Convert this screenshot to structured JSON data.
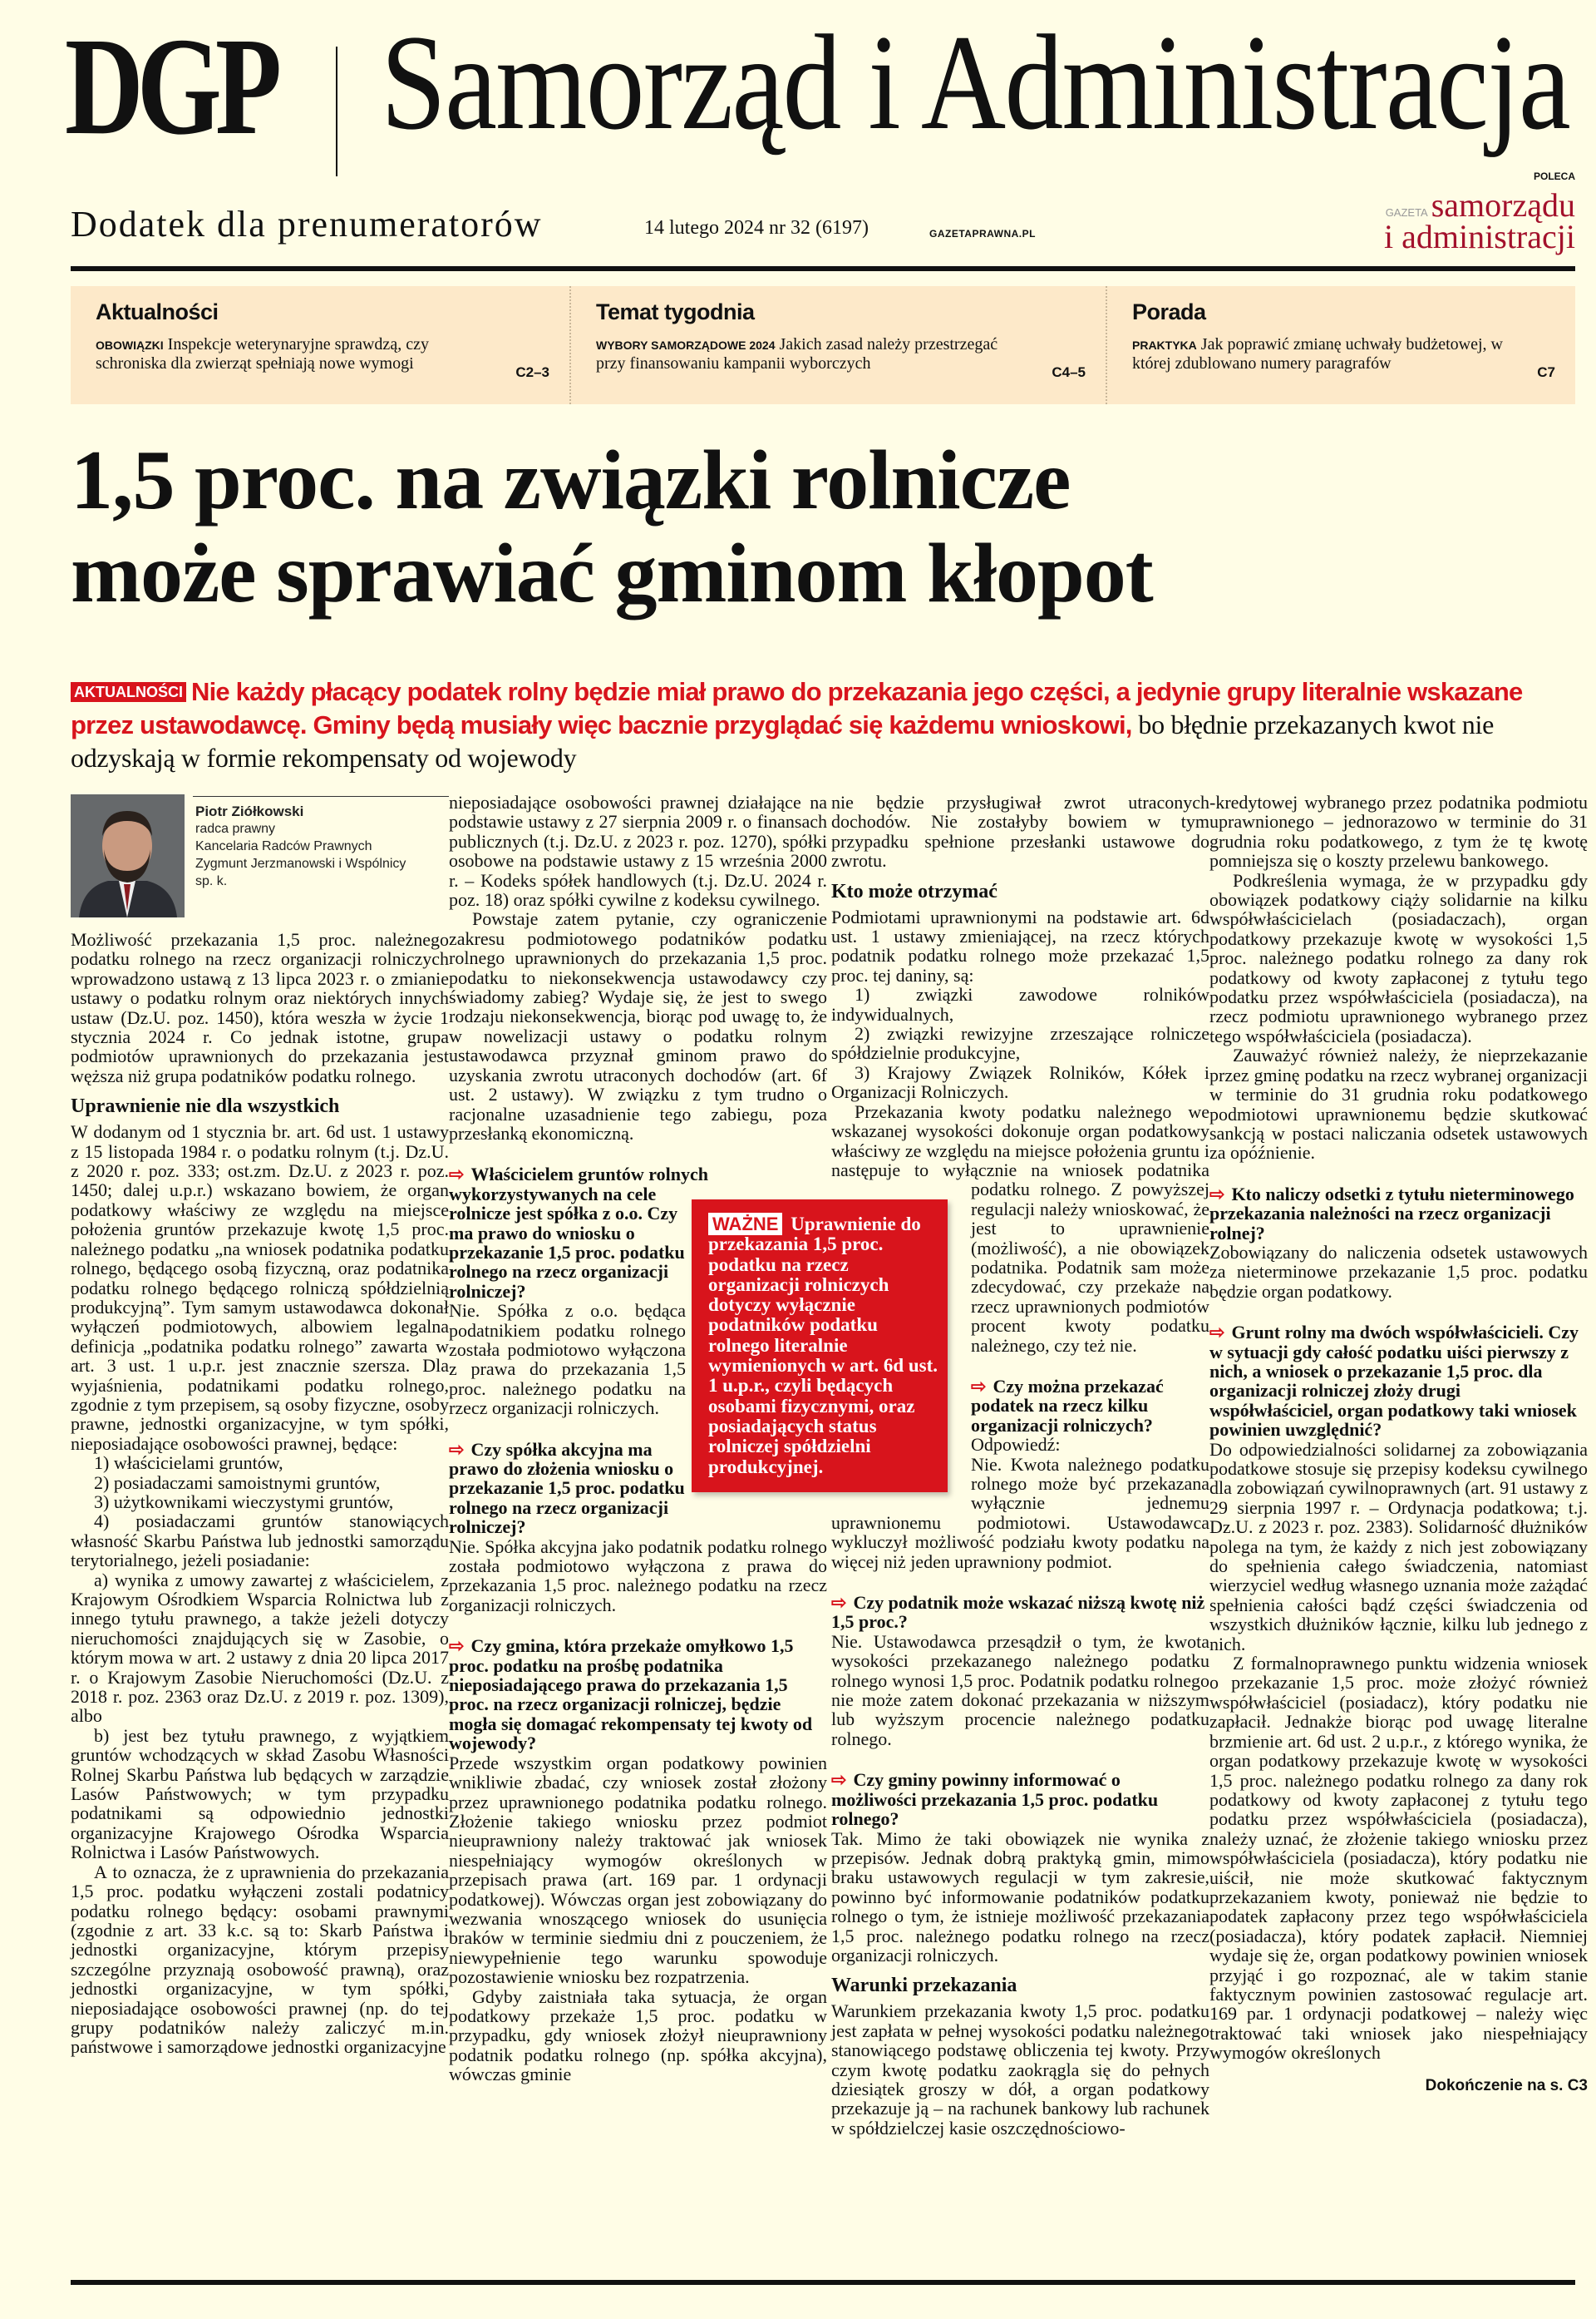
{
  "header": {
    "brand": "DGP",
    "masthead": "Samorząd i Administracja",
    "supplement": "Dodatek dla prenumeratorów",
    "issue": "14 lutego 2024 nr 32 (6197)",
    "site": "GAZETAPRAWNA.PL",
    "recommends": "POLECA",
    "partner": {
      "prefix": "GAZETA",
      "line1": "samorządu",
      "line2": "i administracji",
      "color": "#a3122c"
    }
  },
  "nav": [
    {
      "heading": "Aktualności",
      "label": "OBOWIĄZKI",
      "text": "Inspekcje weterynaryjne sprawdzą, czy schroniska dla zwierząt spełniają nowe wymogi",
      "page": "C2–3"
    },
    {
      "heading": "Temat tygodnia",
      "label": "WYBORY SAMORZĄDOWE 2024",
      "text": "Jakich zasad należy przestrzegać przy finansowaniu kampanii wyborczych",
      "page": "C4–5"
    },
    {
      "heading": "Porada",
      "label": "PRAKTYKA",
      "text": "Jak poprawić zmianę uchwały budżetowej, w której zdublowano numery paragrafów",
      "page": "C7"
    }
  ],
  "article": {
    "title_line1": "1,5 proc. na związki rolnicze",
    "title_line2": "może sprawiać gminom kłopot",
    "section_tag": "AKTUALNOŚCI",
    "lead_highlight": "Nie każdy płacący podatek rolny będzie miał prawo do przekazania jego części, a jedynie grupy literalnie wskazane przez ustawodawcę. Gminy będą musiały więc bacznie przyglądać się każdemu wnioskowi,",
    "lead_rest": "bo błędnie przekazanych kwot nie odzyskają w formie rekompensaty od wojewody",
    "author": {
      "name": "Piotr Ziółkowski",
      "role": "radca prawny",
      "firm1": "Kancelaria Radców Prawnych",
      "firm2": "Zygmunt Jerzmanowski i Wspólnicy",
      "firm3": "sp. k."
    },
    "important": {
      "label": "WAŻNE",
      "text": "Uprawnienie do przekazania 1,5 proc. podatku na rzecz organizacji rolniczych dotyczy wyłącznie podatników podatku rolnego literalnie wymienionych w art. 6d ust. 1 u.p.r., czyli będących osobami fizycznymi, oraz posiadających status rolniczej spółdzielni produkcyjnej."
    },
    "continued": "Dokończenie na s. C3",
    "accent_color": "#d8141c",
    "columns": [
      [
        {
          "t": "p",
          "text": "Możliwość przekazania 1,5 proc. należnego podatku rolnego na rzecz organizacji rolniczych wprowadzono ustawą z 13 lipca 2023 r. o zmianie ustawy o podatku rolnym oraz niektórych innych ustaw (Dz.U. poz. 1450), która weszła w życie 1 stycznia 2024 r. Co jednak istotne, grupa podmiotów uprawnionych do przekazania jest węższa niż grupa podatników podatku rolnego."
        },
        {
          "t": "h",
          "text": "Uprawnienie nie dla wszystkich"
        },
        {
          "t": "p",
          "text": "W dodanym od 1 stycznia br. art. 6d ust. 1 ustawy z 15 listopada 1984 r. o podatku rolnym (t.j. Dz.U. z 2020 r. poz. 333; ost.zm. Dz.U. z 2023 r. poz. 1450; dalej u.p.r.) wskazano bowiem, że organ podatkowy właściwy ze względu na miejsce położenia gruntów przekazuje kwotę 1,5 proc. należnego podatku „na wniosek podatnika podatku rolnego, będącego osobą fizyczną, oraz podatnika podatku rolnego będącego rolniczą spółdzielnią produkcyjną”. Tym samym ustawodawca dokonał wyłączeń podmiotowych, albowiem legalna definicja „podatnika podatku rolnego” zawarta w art. 3 ust. 1 u.p.r. jest znacznie szersza. Dla wyjaśnienia, podatnikami podatku rolnego, zgodnie z tym przepisem, są osoby fizyczne, osoby prawne, jednostki organizacyjne, w tym spółki, nieposiadające osobowości prawnej, będące:"
        },
        {
          "t": "li",
          "text": "1) właścicielami gruntów,"
        },
        {
          "t": "li",
          "text": "2) posiadaczami samoistnymi gruntów,"
        },
        {
          "t": "li",
          "text": "3) użytkownikami wieczystymi gruntów,"
        },
        {
          "t": "li",
          "text": "4) posiadaczami gruntów stanowiących własność Skarbu Państwa lub jednostki samorządu terytorialnego, jeżeli posiadanie:"
        },
        {
          "t": "li",
          "text": "a) wynika z umowy zawartej z właścicielem, z Krajowym Ośrodkiem Wsparcia Rolnictwa lub z innego tytułu prawnego, a także jeżeli dotyczy nieruchomości znajdujących się w Zasobie, o którym mowa w art. 2 ustawy z dnia 20 lipca 2017 r. o Krajowym Zasobie Nieruchomości (Dz.U. z 2018 r. poz. 2363 oraz Dz.U. z 2019 r. poz. 1309), albo"
        },
        {
          "t": "li",
          "text": "b) jest bez tytułu prawnego, z wyjątkiem gruntów wchodzących w skład Zasobu Własności Rolnej Skarbu Państwa lub będących w zarządzie Lasów Państwowych; w tym przypadku podatnikami są odpowiednio jednostki organizacyjne Krajowego Ośrodka Wsparcia Rolnictwa i Lasów Państwowych."
        },
        {
          "t": "pi",
          "text": "A to oznacza, że z uprawnienia do przekazania 1,5 proc. podatku wyłączeni zostali podatnicy podatku rolnego będący: osobami prawnymi (zgodnie z art. 33 k.c. są to: Skarb Państwa i jednostki organizacyjne, którym przepisy szczególne przyznają osobowość prawną), oraz jednostki organizacyjne, w tym spółki, nieposiadające osobowości prawnej (np. do tej grupy podatników należy zaliczyć m.in. państwowe i samorządowe jednostki organizacyjne"
        }
      ],
      [
        {
          "t": "p",
          "text": "nieposiadające osobowości prawnej działające na podstawie ustawy z 27 sierpnia 2009 r. o finansach publicznych (t.j. Dz.U. z 2023 r. poz. 1270), spółki osobowe na podstawie ustawy z 15 września 2000 r. – Kodeks spółek handlowych (t.j. Dz.U. 2024 r. poz. 18) oraz spółki cywilne z kodeksu cywilnego."
        },
        {
          "t": "pi",
          "text": "Powstaje zatem pytanie, czy ograniczenie zakresu podmiotowego podatników podatku rolnego uprawnionych do przekazania 1,5 proc. podatku to niekonsekwencja ustawodawcy czy świadomy zabieg? Wydaje się, że jest to swego rodzaju niekonsekwencja, biorąc pod uwagę to, że w nowelizacji ustawy o podatku rolnym ustawodawca przyznał gminom prawo do uzyskania zwrotu utraconych dochodów (art. 6f ust. 2 ustawy). W związku z tym trudno o racjonalne uzasadnienie tego zabiegu, poza przesłanką ekonomiczną."
        },
        {
          "t": "q",
          "text": "Właścicielem gruntów rolnych wykorzystywanych na cele rolnicze jest spółka z o.o. Czy ma prawo do wniosku o przekazanie 1,5 proc. podatku rolnego na rzecz organizacji rolniczej?"
        },
        {
          "t": "p",
          "text": "Nie. Spółka z o.o. będąca podatnikiem podatku rolnego została podmiotowo wyłączona z prawa do przekazania 1,5 proc. należnego podatku na rzecz organizacji rolniczych."
        },
        {
          "t": "q",
          "text": "Czy spółka akcyjna ma prawo do złożenia wniosku o przekazanie 1,5 proc. podatku rolnego na rzecz organizacji rolniczej?"
        },
        {
          "t": "p",
          "text": "Nie. Spółka akcyjna jako podatnik podatku rolnego została podmiotowo wyłączona z prawa do przekazania 1,5 proc. należnego podatku na rzecz organizacji rolniczych."
        },
        {
          "t": "q",
          "text": "Czy gmina, która przekaże omyłkowo 1,5 proc. podatku na prośbę podatnika nieposiadającego prawa do przekazania 1,5 proc. na rzecz organizacji rolniczej, będzie mogła się domagać rekompensaty tej kwoty od wojewody?"
        },
        {
          "t": "p",
          "text": "Przede wszystkim organ podatkowy powinien wnikliwie zbadać, czy wniosek został złożony przez uprawnionego podatnika podatku rolnego. Złożenie takiego wniosku przez podmiot nieuprawniony należy traktować jak wniosek niespełniający wymogów określonych w przepisach prawa (art. 169 par. 1 ordynacji podatkowej). Wówczas organ jest zobowiązany do wezwania wnoszącego wniosek do usunięcia braków w terminie siedmiu dni z pouczeniem, że niewypełnienie tego warunku spowoduje pozostawienie wniosku bez rozpatrzenia."
        },
        {
          "t": "pi",
          "text": "Gdyby zaistniała taka sytuacja, że organ podatkowy przekaże 1,5 proc. podatku w przypadku, gdy wniosek złożył nieuprawniony podatnik podatku rolnego (np. spółka akcyjna), wówczas gminie"
        }
      ],
      [
        {
          "t": "p",
          "text": "nie będzie przysługiwał zwrot utraconych dochodów. Nie zostałyby bowiem w tym przypadku spełnione przesłanki ustawowe do zwrotu."
        },
        {
          "t": "h",
          "text": "Kto może otrzymać"
        },
        {
          "t": "p",
          "text": "Podmiotami uprawnionymi na podstawie art. 6d ust. 1 ustawy zmieniającej, na rzecz których podatnik podatku rolnego może przekazać 1,5 proc. tej daniny, są:"
        },
        {
          "t": "li",
          "text": "1) związki zawodowe rolników indywidualnych,"
        },
        {
          "t": "li",
          "text": "2) związki rewizyjne zrzeszające rolnicze spółdzielnie produkcyjne,"
        },
        {
          "t": "li",
          "text": "3) Krajowy Związek Rolników, Kółek i Organizacji Rolniczych."
        },
        {
          "t": "pi",
          "text": "Przekazania kwoty podatku należnego we wskazanej wysokości dokonuje organ podatkowy właściwy ze względu na miejsce położenia gruntu i następuje to wyłącznie na wniosek podatnika podatku rolnego. Z powyższej regulacji należy wnioskować, że jest to uprawnienie (możliwość), a nie obowiązek podatnika. Podatnik sam może zdecydować, czy przekaże na rzecz uprawnionych podmiotów procent kwoty podatku należnego, czy też nie."
        },
        {
          "t": "q",
          "text": "Czy można przekazać podatek na rzecz kilku organizacji rolniczych?"
        },
        {
          "t": "p",
          "text": "Odpowiedź:"
        },
        {
          "t": "p",
          "text": "Nie. Kwota należnego podatku rolnego może być przekazana wyłącznie jednemu uprawnionemu podmiotowi. Ustawodawca wykluczył możliwość podziału kwoty podatku na więcej niż jeden uprawniony podmiot."
        },
        {
          "t": "q",
          "text": "Czy podatnik może wskazać niższą kwotę niż 1,5 proc.?"
        },
        {
          "t": "p",
          "text": "Nie. Ustawodawca przesądził o tym, że kwota wysokości przekazanego należnego podatku rolnego wynosi 1,5 proc. Podatnik podatku rolnego nie może zatem dokonać przekazania w niższym lub wyższym procencie należnego podatku rolnego."
        },
        {
          "t": "q",
          "text": "Czy gminy powinny informować o możliwości przekazania 1,5 proc. podatku rolnego?"
        },
        {
          "t": "p",
          "text": "Tak. Mimo że taki obowiązek nie wynika z przepisów. Jednak dobrą praktyką gmin, mimo braku ustawowych regulacji w tym zakresie, powinno być informowanie podatników podatku rolnego o tym, że istnieje możliwość przekazania 1,5 proc. należnego podatku rolnego na rzecz organizacji rolniczych."
        },
        {
          "t": "h",
          "text": "Warunki przekazania"
        },
        {
          "t": "p",
          "text": "Warunkiem przekazania kwoty 1,5 proc. podatku jest zapłata w pełnej wysokości podatku należnego stanowiącego podstawę obliczenia tej kwoty. Przy czym kwotę podatku zaokrągla się do pełnych dziesiątek groszy w dół, a organ podatkowy przekazuje ją – na rachunek bankowy lub rachunek w spółdzielczej kasie oszczędnościowo-"
        }
      ],
      [
        {
          "t": "p",
          "text": "-kredytowej wybranego przez podatnika podmiotu uprawnionego – jednorazowo w terminie do 31 grudnia roku podatkowego, z tym że tę kwotę pomniejsza się o koszty przelewu bankowego."
        },
        {
          "t": "pi",
          "text": "Podkreślenia wymaga, że w przypadku gdy obowiązek podatkowy ciąży solidarnie na kilku współwłaścicielach (posiadaczach), organ podatkowy przekazuje kwotę w wysokości 1,5 proc. należnego podatku rolnego za dany rok podatkowy od kwoty zapłaconej z tytułu tego podatku przez współwłaściciela (posiadacza), na rzecz podmiotu uprawnionego wybranego przez tego współwłaściciela (posiadacza)."
        },
        {
          "t": "pi",
          "text": "Zauważyć również należy, że nieprzekazanie przez gminę podatku na rzecz wybranej organizacji w terminie do 31 grudnia roku podatkowego podmiotowi uprawnionemu będzie skutkować sankcją w postaci naliczania odsetek ustawowych za opóźnienie."
        },
        {
          "t": "q",
          "text": "Kto naliczy odsetki z tytułu nieterminowego przekazania należności na rzecz organizacji rolnej?"
        },
        {
          "t": "p",
          "text": "Zobowiązany do naliczenia odsetek ustawowych za nieterminowe przekazanie 1,5 proc. podatku będzie organ podatkowy."
        },
        {
          "t": "q",
          "text": "Grunt rolny ma dwóch współwłaścicieli. Czy w sytuacji gdy całość podatku uiści pierwszy z nich, a wniosek o przekazanie 1,5 proc. dla organizacji rolniczej złoży drugi współwłaściciel, organ podatkowy taki wniosek powinien uwzględnić?"
        },
        {
          "t": "p",
          "text": "Do odpowiedzialności solidarnej za zobowiązania podatkowe stosuje się przepisy kodeksu cywilnego dla zobowiązań cywilnoprawnych (art. 91 ustawy z 29 sierpnia 1997 r. – Ordynacja podatkowa; t.j. Dz.U. z 2023 r. poz. 2383). Solidarność dłużników polega na tym, że każdy z nich jest zobowiązany do spełnienia całego świadczenia, natomiast wierzyciel według własnego uznania może zażądać spełnienia całości bądź części świadczenia od wszystkich dłużników łącznie, kilku lub jednego z nich."
        },
        {
          "t": "pi",
          "text": "Z formalnoprawnego punktu widzenia wniosek o przekazanie 1,5 proc. może złożyć również współwłaściciel (posiadacz), który podatku nie zapłacił. Jednakże biorąc pod uwagę literalne brzmienie art. 6d ust. 2 u.p.r., z którego wynika, że organ podatkowy przekazuje kwotę w wysokości 1,5 proc. należnego podatku rolnego za dany rok podatkowy od kwoty zapłaconej z tytułu tego podatku przez współwłaściciela (posiadacza), należy uznać, że złożenie takiego wniosku przez współwłaściciela (posiadacza), który podatku nie uiścił, nie może skutkować faktycznym przekazaniem kwoty, ponieważ nie będzie to podatek zapłacony przez tego współwłaściciela (posiadacza), który podatek zapłacił. Niemniej wydaje się że, organ podatkowy powinien wniosek przyjąć i go rozpoznać, ale w takim stanie faktycznym powinien zastosować regulacje art. 169 par. 1 ordynacji podatkowej – należy więc traktować taki wniosek jako niespełniający wymogów określonych"
        }
      ]
    ]
  }
}
